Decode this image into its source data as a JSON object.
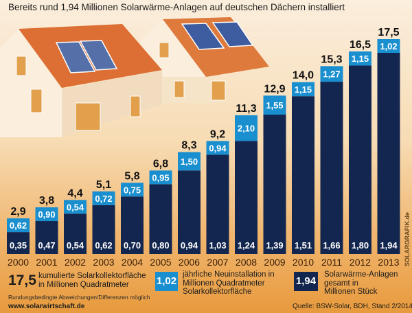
{
  "chart_data": {
    "type": "bar",
    "title": "Bereits rund 1,94 Millionen Solarwärme-Anlagen auf deutschen Dächern installiert",
    "categories": [
      "2000",
      "2001",
      "2002",
      "2003",
      "2004",
      "2005",
      "2006",
      "2007",
      "2008",
      "2009",
      "2010",
      "2011",
      "2012",
      "2013"
    ],
    "series": [
      {
        "name": "Solarwärme-Anlagen gesamt in Millionen Stück",
        "values_label": [
          "0,35",
          "0,47",
          "0,54",
          "0,62",
          "0,70",
          "0,80",
          "0,94",
          "1,03",
          "1,24",
          "1,39",
          "1,51",
          "1,66",
          "1,80",
          "1,94"
        ],
        "values": [
          0.35,
          0.47,
          0.54,
          0.62,
          0.7,
          0.8,
          0.94,
          1.03,
          1.24,
          1.39,
          1.51,
          1.66,
          1.8,
          1.94
        ],
        "color": "#13264f"
      },
      {
        "name": "jährliche Neuinstallation in Millionen Quadratmeter Solarkollektorfläche",
        "values_label": [
          "0,62",
          "0,90",
          "0,54",
          "0,72",
          "0,75",
          "0,95",
          "1,50",
          "0,94",
          "2,10",
          "1,55",
          "1,15",
          "1,27",
          "1,15",
          "1,02"
        ],
        "values": [
          0.62,
          0.9,
          0.54,
          0.72,
          0.75,
          0.95,
          1.5,
          0.94,
          2.1,
          1.55,
          1.15,
          1.27,
          1.15,
          1.02
        ],
        "color": "#1a8fd0"
      },
      {
        "name": "kumulierte Solarkollektorfläche in Millionen Quadratmeter",
        "values_label": [
          "2,9",
          "3,8",
          "4,4",
          "5,1",
          "5,8",
          "6,8",
          "8,3",
          "9,2",
          "11,3",
          "12,9",
          "14,0",
          "15,3",
          "16,5",
          "17,5"
        ],
        "values": [
          2.9,
          3.8,
          4.4,
          5.1,
          5.8,
          6.8,
          8.3,
          9.2,
          11.3,
          12.9,
          14.0,
          15.3,
          16.5,
          17.5
        ]
      }
    ],
    "ylim": [
      0,
      17.5
    ],
    "xlabel": "",
    "ylabel": "",
    "grid": false,
    "legend_position": "bottom"
  },
  "legend": {
    "cumulative": {
      "sample": "17,5",
      "text": [
        "kumulierte Solarkollektorfläche",
        "in Millionen Quadratmeter"
      ]
    },
    "annual": {
      "sample": "1,02",
      "text": [
        "jährliche Neuinstallation in",
        "Millionen Quadratmeter",
        "Solarkollektorfläche"
      ]
    },
    "systems": {
      "sample": "1,94",
      "text": [
        "Solarwärme-Anlagen",
        "gesamt in",
        "Millionen Stück"
      ]
    }
  },
  "footer": {
    "note": "Rundungsbedingte Abweichungen/Differenzen möglich",
    "url": "www.solarwirtschaft.de",
    "source": "Quelle: BSW-Solar, BDH, Stand 2/2014",
    "credit": "SOLARGRAFIK.de"
  }
}
